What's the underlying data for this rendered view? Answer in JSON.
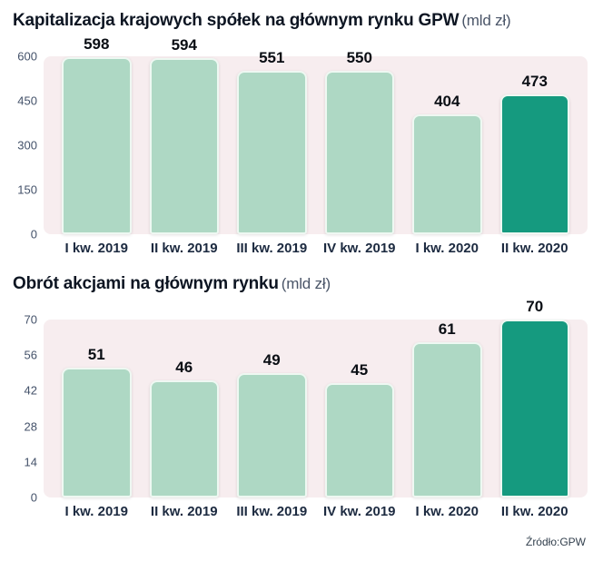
{
  "page": {
    "source": "Źródło:GPW"
  },
  "colors": {
    "bar": "#aed8c4",
    "bar_highlight": "#159a7f",
    "bar_border": "#eef8f2",
    "plot_bg": "#f7edef",
    "title_text": "#0d1522",
    "subtitle_text": "#4a5568",
    "axis_text": "#44526a",
    "category_text": "#1c2a40",
    "value_text": "#0a0e14",
    "source_text": "#33404e"
  },
  "chart_data": [
    {
      "type": "bar",
      "title": "Kapitalizacja krajowych spółek na głównym rynku GPW",
      "subtitle": "(mld zł)",
      "categories": [
        "I kw. 2019",
        "II kw. 2019",
        "III kw. 2019",
        "IV kw. 2019",
        "I kw. 2020",
        "II kw. 2020"
      ],
      "values": [
        598,
        594,
        551,
        550,
        404,
        473
      ],
      "highlight_index": 5,
      "yticks": [
        0,
        150,
        300,
        450,
        600
      ],
      "ylim": [
        0,
        600
      ],
      "xlabel": "",
      "ylabel": "",
      "grid": false,
      "legend": "none"
    },
    {
      "type": "bar",
      "title": "Obrót akcjami na głównym rynku",
      "subtitle": "(mld zł)",
      "categories": [
        "I kw. 2019",
        "II kw. 2019",
        "III kw. 2019",
        "IV kw. 2019",
        "I kw. 2020",
        "II kw. 2020"
      ],
      "values": [
        51,
        46,
        49,
        45,
        61,
        70
      ],
      "highlight_index": 5,
      "yticks": [
        0,
        14,
        28,
        42,
        56,
        70
      ],
      "ylim": [
        0,
        70
      ],
      "xlabel": "",
      "ylabel": "",
      "grid": false,
      "legend": "none"
    }
  ]
}
